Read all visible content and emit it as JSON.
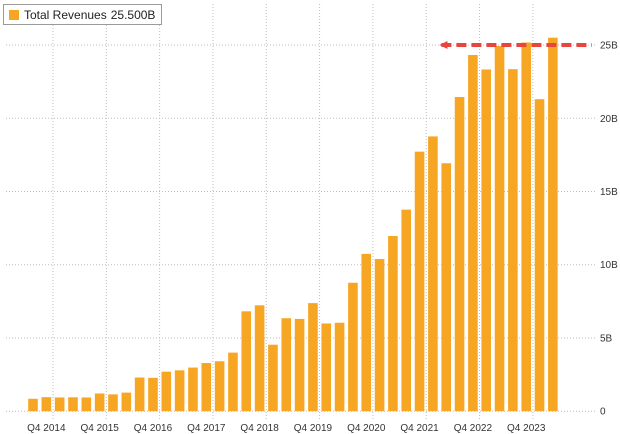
{
  "colors": {
    "bar": "#F7A623",
    "highlight_line": "#E8453C",
    "grid": "#bdbdbd",
    "axis_text": "#333333"
  },
  "legend": {
    "series_name": "Total Revenues",
    "last_value": "25.500B"
  },
  "chart_data": {
    "type": "bar",
    "x": [
      "Q3 2014",
      "Q4 2014",
      "Q1 2015",
      "Q2 2015",
      "Q3 2015",
      "Q4 2015",
      "Q1 2016",
      "Q2 2016",
      "Q3 2016",
      "Q4 2016",
      "Q1 2017",
      "Q2 2017",
      "Q3 2017",
      "Q4 2017",
      "Q1 2018",
      "Q2 2018",
      "Q3 2018",
      "Q4 2018",
      "Q1 2019",
      "Q2 2019",
      "Q3 2019",
      "Q4 2019",
      "Q1 2020",
      "Q2 2020",
      "Q3 2020",
      "Q4 2020",
      "Q1 2021",
      "Q2 2021",
      "Q3 2021",
      "Q4 2021",
      "Q1 2022",
      "Q2 2022",
      "Q3 2022",
      "Q4 2022",
      "Q1 2023",
      "Q2 2023",
      "Q3 2023",
      "Q4 2023",
      "Q1 2024",
      "Q2 2024"
    ],
    "series": [
      {
        "name": "Total Revenues",
        "values": [
          0.85,
          0.96,
          0.94,
          0.95,
          0.94,
          1.21,
          1.15,
          1.27,
          2.3,
          2.28,
          2.7,
          2.79,
          2.98,
          3.29,
          3.41,
          4.0,
          6.82,
          7.23,
          4.54,
          6.35,
          6.3,
          7.38,
          5.99,
          6.04,
          8.77,
          10.74,
          10.39,
          11.96,
          13.76,
          17.72,
          18.76,
          16.93,
          21.45,
          24.32,
          23.33,
          24.93,
          23.35,
          25.17,
          21.3,
          25.5
        ]
      }
    ],
    "x_tick_labels": [
      {
        "label": "Q4 2014",
        "x": "Q4 2014"
      },
      {
        "label": "Q4 2015",
        "x": "Q4 2015"
      },
      {
        "label": "Q4 2016",
        "x": "Q4 2016"
      },
      {
        "label": "Q4 2017",
        "x": "Q4 2017"
      },
      {
        "label": "Q4 2018",
        "x": "Q4 2018"
      },
      {
        "label": "Q4 2019",
        "x": "Q4 2019"
      },
      {
        "label": "Q4 2020",
        "x": "Q4 2020"
      },
      {
        "label": "Q4 2021",
        "x": "Q4 2021"
      },
      {
        "label": "Q4 2022",
        "x": "Q4 2022"
      },
      {
        "label": "Q4 2023",
        "x": "Q4 2023"
      }
    ],
    "y_ticks": [
      {
        "value": 0,
        "label": "0"
      },
      {
        "value": 5,
        "label": "5B"
      },
      {
        "value": 10,
        "label": "10B"
      },
      {
        "value": 15,
        "label": "15B"
      },
      {
        "value": 20,
        "label": "20B"
      },
      {
        "value": 25,
        "label": "25B"
      }
    ],
    "ylim": [
      -0.6,
      27.8
    ],
    "y_axis_position": "right",
    "grid": true,
    "legend_position": "top-left",
    "reference_line": {
      "value": 25.0,
      "from": "Q2 2022",
      "to": "Q2 2024",
      "style": "dashed"
    }
  }
}
